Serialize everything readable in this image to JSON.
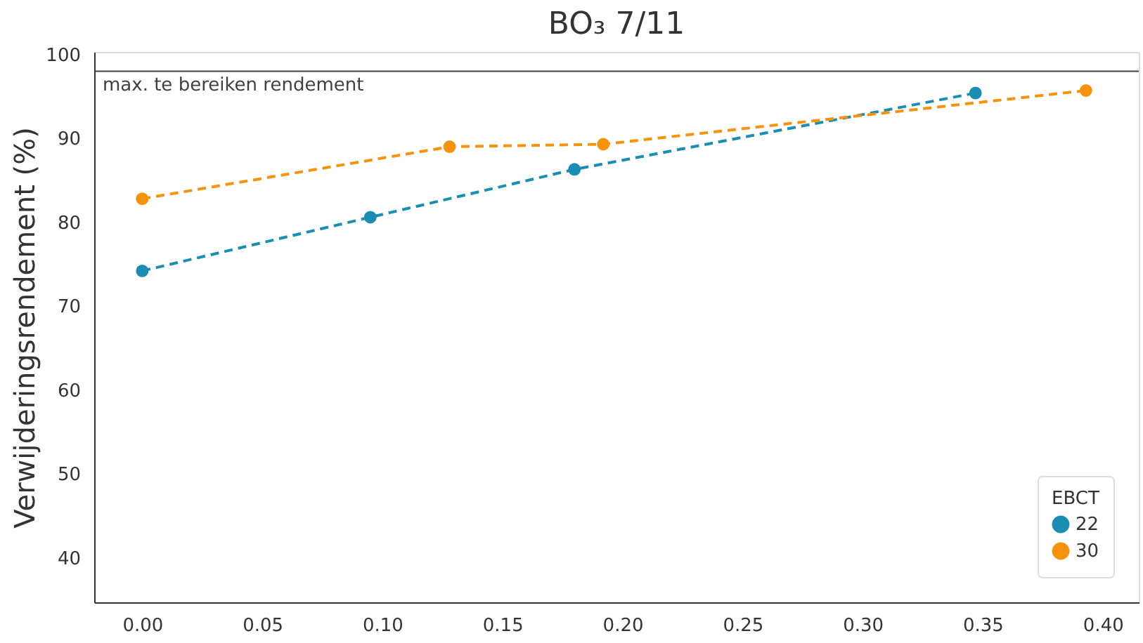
{
  "chart_data": {
    "type": "line",
    "title": "BO₃  7/11",
    "ylabel": "Verwijderingsrendement (%)",
    "legend_title": "EBCT",
    "series": [
      {
        "name": "22",
        "color": "#1a8db0",
        "x": [
          0.0,
          0.095,
          0.18,
          0.347
        ],
        "values": [
          74.2,
          80.6,
          86.3,
          95.4
        ]
      },
      {
        "name": "30",
        "color": "#f5930f",
        "x": [
          0.0,
          0.128,
          0.192,
          0.393
        ],
        "values": [
          82.8,
          89.0,
          89.3,
          95.7
        ]
      }
    ],
    "xlim": [
      -0.02,
      0.415
    ],
    "xticks": [
      {
        "value": 0,
        "label": "0.00"
      },
      0.05,
      {
        "value": 0.1,
        "label": "0.10"
      },
      0.15,
      {
        "value": 0.2,
        "label": "0.20"
      },
      0.25,
      {
        "value": 0.3,
        "label": "0.30"
      },
      0.35,
      {
        "value": 0.4,
        "label": "0.40"
      }
    ],
    "ylim": [
      34.7,
      100.3
    ],
    "yticks": [
      40,
      50,
      60,
      70,
      80,
      90,
      100
    ],
    "ref_lines": [
      {
        "axis": "y",
        "value": 98,
        "label": "max. te bereiken rendement",
        "color": "#404040"
      }
    ],
    "marker": "circle",
    "line_style": "dashed",
    "grid": false,
    "legend": "bottom right"
  }
}
